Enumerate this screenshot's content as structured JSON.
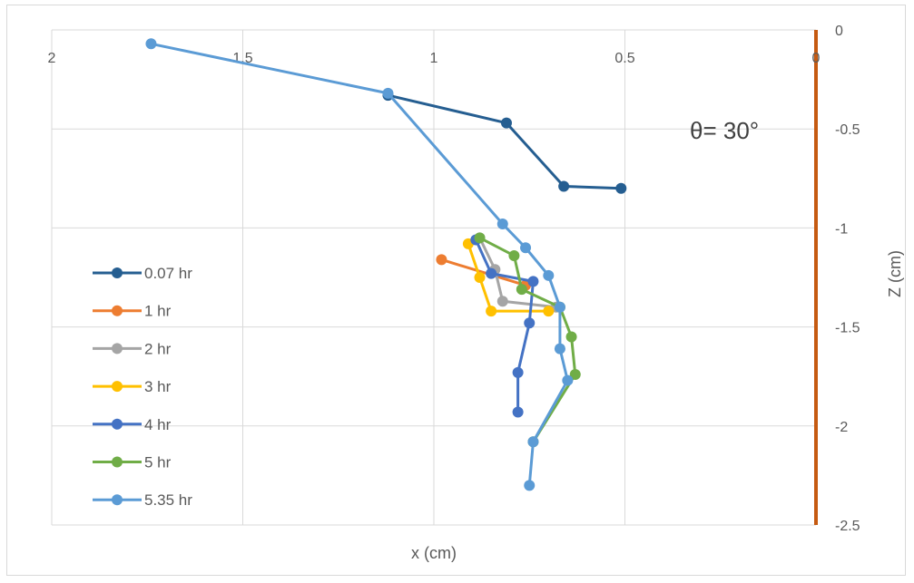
{
  "chart_data": {
    "type": "scatter",
    "title": "",
    "xlabel": "x (cm)",
    "ylabel": "Z (cm)",
    "xlim": [
      2,
      0
    ],
    "ylim": [
      -2.5,
      0
    ],
    "x_ticks": [
      2,
      1.5,
      1,
      0.5,
      0
    ],
    "y_ticks": [
      0,
      -0.5,
      -1,
      -1.5,
      -2,
      -2.5
    ],
    "x_tick_labels": [
      "2",
      "1.5",
      "1",
      "0.5",
      "0"
    ],
    "y_tick_labels": [
      "0",
      "-0.5",
      "-1",
      "-1.5",
      "-2",
      "-2.5"
    ],
    "grid": true,
    "legend_position": "left",
    "annotation": "θ= 30°",
    "wall_color": "#C55A11",
    "series": [
      {
        "name": "0.07 hr",
        "color": "#255E91",
        "x": [
          1.12,
          0.81,
          0.66,
          0.51
        ],
        "y": [
          -0.33,
          -0.47,
          -0.79,
          -0.8
        ]
      },
      {
        "name": "1 hr",
        "color": "#ED7D31",
        "x": [
          0.98,
          0.76
        ],
        "y": [
          -1.16,
          -1.29
        ]
      },
      {
        "name": "2 hr",
        "color": "#A5A5A5",
        "x": [
          0.88,
          0.84,
          0.82,
          0.68
        ],
        "y": [
          -1.05,
          -1.21,
          -1.37,
          -1.4
        ]
      },
      {
        "name": "3 hr",
        "color": "#FFC000",
        "x": [
          0.91,
          0.88,
          0.85,
          0.7
        ],
        "y": [
          -1.08,
          -1.25,
          -1.42,
          -1.42
        ]
      },
      {
        "name": "4 hr",
        "color": "#4472C4",
        "x": [
          0.89,
          0.85,
          0.74,
          0.75,
          0.78,
          0.78
        ],
        "y": [
          -1.06,
          -1.23,
          -1.27,
          -1.48,
          -1.73,
          -1.93
        ]
      },
      {
        "name": "5 hr",
        "color": "#70AD47",
        "x": [
          0.88,
          0.79,
          0.77,
          0.67,
          0.64,
          0.63,
          0.74
        ],
        "y": [
          -1.05,
          -1.14,
          -1.31,
          -1.4,
          -1.55,
          -1.74,
          -2.08
        ]
      },
      {
        "name": "5.35 hr",
        "color": "#5B9BD5",
        "x": [
          1.74,
          1.12,
          0.82,
          0.76,
          0.7,
          0.67,
          0.67,
          0.65,
          0.74,
          0.75
        ],
        "y": [
          -0.07,
          -0.32,
          -0.98,
          -1.1,
          -1.24,
          -1.4,
          -1.61,
          -1.77,
          -2.08,
          -2.3
        ]
      }
    ]
  }
}
